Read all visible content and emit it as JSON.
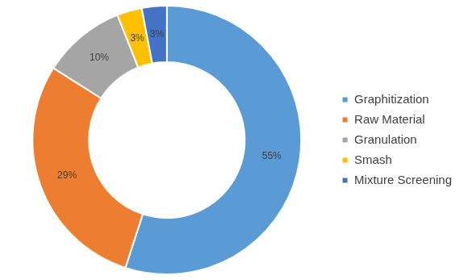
{
  "chart_data": {
    "type": "doughnut",
    "categories": [
      "Graphitization",
      "Raw Material",
      "Granulation",
      "Smash",
      "Mixture Screening"
    ],
    "values": [
      55,
      29,
      10,
      3,
      3
    ],
    "value_labels": [
      "55%",
      "29%",
      "10%",
      "3%",
      "3%"
    ],
    "colors": [
      "#5b9bd5",
      "#ed7d31",
      "#a5a5a5",
      "#ffc000",
      "#4472c4"
    ],
    "legend": "right",
    "data_labels": true
  }
}
